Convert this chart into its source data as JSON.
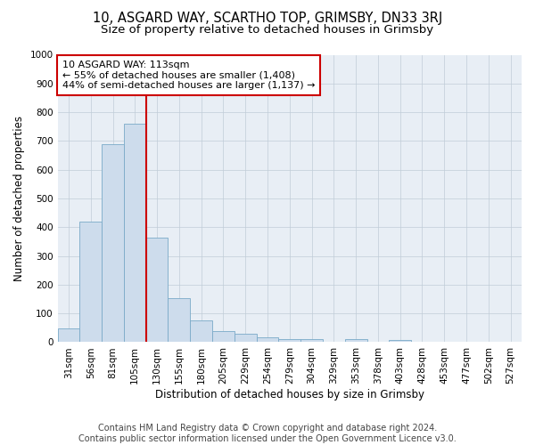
{
  "title": "10, ASGARD WAY, SCARTHO TOP, GRIMSBY, DN33 3RJ",
  "subtitle": "Size of property relative to detached houses in Grimsby",
  "xlabel": "Distribution of detached houses by size in Grimsby",
  "ylabel": "Number of detached properties",
  "bar_color": "#cddcec",
  "bar_edge_color": "#7aaac8",
  "categories": [
    "31sqm",
    "56sqm",
    "81sqm",
    "105sqm",
    "130sqm",
    "155sqm",
    "180sqm",
    "205sqm",
    "229sqm",
    "254sqm",
    "279sqm",
    "304sqm",
    "329sqm",
    "353sqm",
    "378sqm",
    "403sqm",
    "428sqm",
    "453sqm",
    "477sqm",
    "502sqm",
    "527sqm"
  ],
  "values": [
    48,
    420,
    690,
    760,
    365,
    153,
    75,
    40,
    30,
    18,
    12,
    10,
    0,
    10,
    0,
    8,
    0,
    0,
    0,
    0,
    0
  ],
  "vline_x": 3.5,
  "annotation_text": "10 ASGARD WAY: 113sqm\n← 55% of detached houses are smaller (1,408)\n44% of semi-detached houses are larger (1,137) →",
  "annotation_box_color": "#ffffff",
  "annotation_box_edge": "#cc0000",
  "vline_color": "#cc0000",
  "ylim": [
    0,
    1000
  ],
  "yticks": [
    0,
    100,
    200,
    300,
    400,
    500,
    600,
    700,
    800,
    900,
    1000
  ],
  "footer_line1": "Contains HM Land Registry data © Crown copyright and database right 2024.",
  "footer_line2": "Contains public sector information licensed under the Open Government Licence v3.0.",
  "bg_color": "#ffffff",
  "axes_bg_color": "#e8eef5",
  "grid_color": "#c0ccd8",
  "title_fontsize": 10.5,
  "subtitle_fontsize": 9.5,
  "axis_label_fontsize": 8.5,
  "tick_fontsize": 7.5,
  "annotation_fontsize": 8,
  "footer_fontsize": 7
}
